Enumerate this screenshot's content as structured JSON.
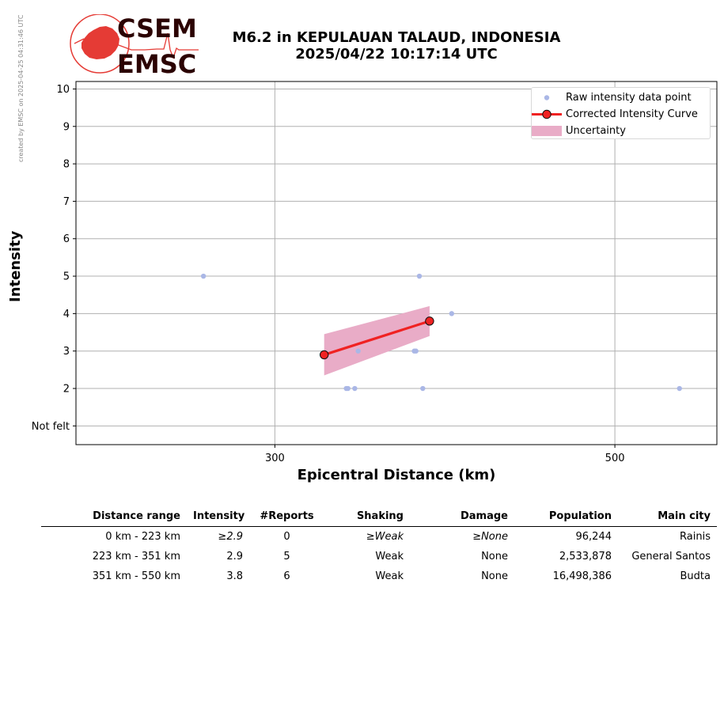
{
  "header": {
    "watermark": "created by EMSC on 2025-04-25 04:31:46 UTC",
    "logo_text_top": "CSEM",
    "logo_text_bottom": "EMSC",
    "title_line1": "M6.2 in KEPULAUAN TALAUD, INDONESIA",
    "title_line2": "2025/04/22 10:17:14 UTC"
  },
  "colors": {
    "raw_points": "#aab7e6",
    "curve": "#f02222",
    "uncertainty": "#e9acc7",
    "grid": "#b0b0b0",
    "logo_red": "#e53b35",
    "logo_dark": "#2b0202"
  },
  "chart_data": {
    "type": "scatter",
    "xlabel": "Epicentral Distance (km)",
    "ylabel": "Intensity",
    "xlim": [
      183,
      560
    ],
    "ylim": [
      0.5,
      10.2
    ],
    "x_ticks": [
      300,
      500
    ],
    "y_ticks": [
      {
        "value": 1,
        "label": "Not felt"
      },
      {
        "value": 2,
        "label": "2"
      },
      {
        "value": 3,
        "label": "3"
      },
      {
        "value": 4,
        "label": "4"
      },
      {
        "value": 5,
        "label": "5"
      },
      {
        "value": 6,
        "label": "6"
      },
      {
        "value": 7,
        "label": "7"
      },
      {
        "value": 8,
        "label": "8"
      },
      {
        "value": 9,
        "label": "9"
      },
      {
        "value": 10,
        "label": "10"
      }
    ],
    "grid": true,
    "legend_placement": "top-right",
    "legend": {
      "raw": "Raw intensity data point",
      "curve": "Corrected Intensity Curve",
      "uncertainty": "Uncertainty"
    },
    "raw_points": [
      {
        "x": 258,
        "y": 5
      },
      {
        "x": 342,
        "y": 2
      },
      {
        "x": 343,
        "y": 2
      },
      {
        "x": 347,
        "y": 2
      },
      {
        "x": 349,
        "y": 3
      },
      {
        "x": 382,
        "y": 3
      },
      {
        "x": 383,
        "y": 3
      },
      {
        "x": 385,
        "y": 5
      },
      {
        "x": 387,
        "y": 2
      },
      {
        "x": 404,
        "y": 4
      },
      {
        "x": 538,
        "y": 2
      }
    ],
    "curve": [
      {
        "x": 329,
        "y": 2.9
      },
      {
        "x": 391,
        "y": 3.8
      }
    ],
    "uncertainty": {
      "x": [
        329,
        391
      ],
      "lower": [
        2.35,
        3.4
      ],
      "upper": [
        3.45,
        4.2
      ]
    }
  },
  "table": {
    "headers": [
      "Distance range",
      "Intensity",
      "#Reports",
      "Shaking",
      "Damage",
      "Population",
      "Main city"
    ],
    "rows": [
      [
        "0 km -  223 km",
        "≥2.9",
        "0",
        "≥Weak",
        "≥None",
        "96,244",
        "Rainis"
      ],
      [
        "223 km -  351 km",
        "2.9",
        "5",
        "Weak",
        "None",
        "2,533,878",
        "General Santos"
      ],
      [
        "351 km -  550 km",
        "3.8",
        "6",
        "Weak",
        "None",
        "16,498,386",
        "Budta"
      ]
    ],
    "italic_cells": [
      [
        0,
        1
      ],
      [
        0,
        3
      ],
      [
        0,
        4
      ]
    ]
  }
}
